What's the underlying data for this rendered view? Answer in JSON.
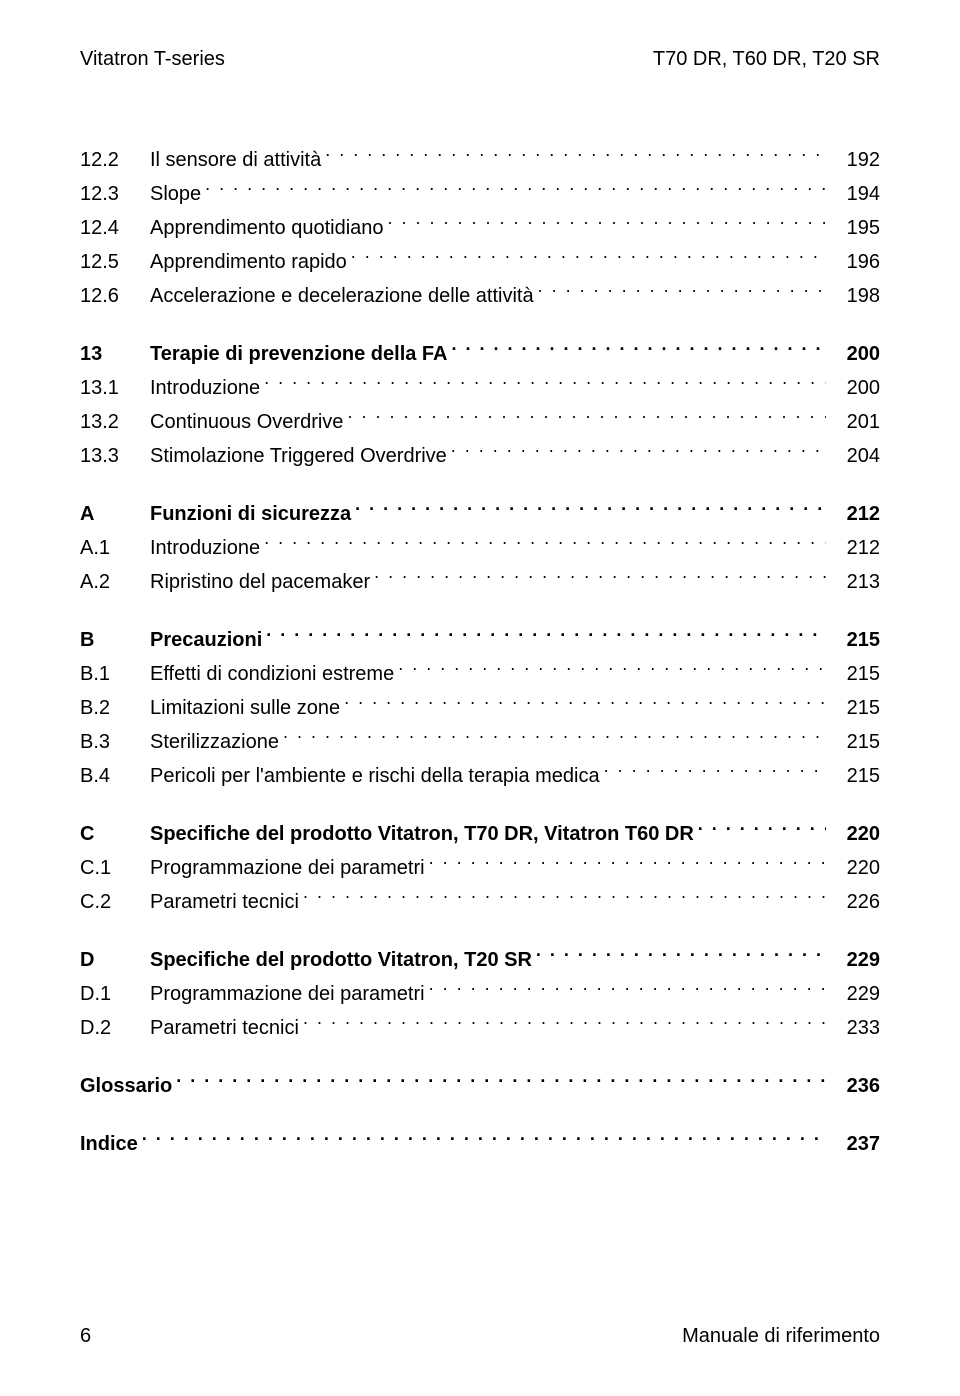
{
  "header": {
    "left": "Vitatron T-series",
    "right": "T70 DR, T60 DR, T20 SR"
  },
  "footer": {
    "page_number": "6",
    "doc_title": "Manuale di riferimento"
  },
  "toc": {
    "groups": [
      {
        "items": [
          {
            "num": "12.2",
            "title": "Il sensore di attività",
            "page": "192",
            "bold": false
          },
          {
            "num": "12.3",
            "title": "Slope",
            "page": "194",
            "bold": false
          },
          {
            "num": "12.4",
            "title": "Apprendimento quotidiano",
            "page": "195",
            "bold": false
          },
          {
            "num": "12.5",
            "title": "Apprendimento rapido",
            "page": "196",
            "bold": false
          },
          {
            "num": "12.6",
            "title": "Accelerazione e decelerazione delle attività",
            "page": "198",
            "bold": false
          }
        ]
      },
      {
        "items": [
          {
            "num": "13",
            "title": "Terapie di prevenzione della FA",
            "page": "200",
            "bold": true
          },
          {
            "num": "13.1",
            "title": "Introduzione",
            "page": "200",
            "bold": false
          },
          {
            "num": "13.2",
            "title": "Continuous Overdrive",
            "page": "201",
            "bold": false
          },
          {
            "num": "13.3",
            "title": "Stimolazione Triggered Overdrive",
            "page": "204",
            "bold": false
          }
        ]
      },
      {
        "items": [
          {
            "num": "A",
            "title": "Funzioni di sicurezza",
            "page": "212",
            "bold": true
          },
          {
            "num": "A.1",
            "title": "Introduzione",
            "page": "212",
            "bold": false
          },
          {
            "num": "A.2",
            "title": "Ripristino del pacemaker",
            "page": "213",
            "bold": false
          }
        ]
      },
      {
        "items": [
          {
            "num": "B",
            "title": "Precauzioni",
            "page": "215",
            "bold": true
          },
          {
            "num": "B.1",
            "title": "Effetti di condizioni estreme",
            "page": "215",
            "bold": false
          },
          {
            "num": "B.2",
            "title": "Limitazioni sulle zone",
            "page": "215",
            "bold": false
          },
          {
            "num": "B.3",
            "title": "Sterilizzazione",
            "page": "215",
            "bold": false
          },
          {
            "num": "B.4",
            "title": "Pericoli per l'ambiente e rischi della terapia medica",
            "page": "215",
            "bold": false
          }
        ]
      },
      {
        "items": [
          {
            "num": "C",
            "title": "Specifiche del prodotto Vitatron, T70 DR, Vitatron T60 DR",
            "page": "220",
            "bold": true
          },
          {
            "num": "C.1",
            "title": "Programmazione dei parametri",
            "page": "220",
            "bold": false
          },
          {
            "num": "C.2",
            "title": "Parametri tecnici",
            "page": "226",
            "bold": false
          }
        ]
      },
      {
        "items": [
          {
            "num": "D",
            "title": "Specifiche del prodotto Vitatron, T20 SR",
            "page": "229",
            "bold": true
          },
          {
            "num": "D.1",
            "title": "Programmazione dei parametri",
            "page": "229",
            "bold": false
          },
          {
            "num": "D.2",
            "title": "Parametri tecnici",
            "page": "233",
            "bold": false
          }
        ]
      },
      {
        "items": [
          {
            "num": "",
            "title": "Glossario",
            "page": "236",
            "bold": true
          }
        ]
      },
      {
        "items": [
          {
            "num": "",
            "title": "Indice",
            "page": "237",
            "bold": true
          }
        ]
      }
    ]
  }
}
